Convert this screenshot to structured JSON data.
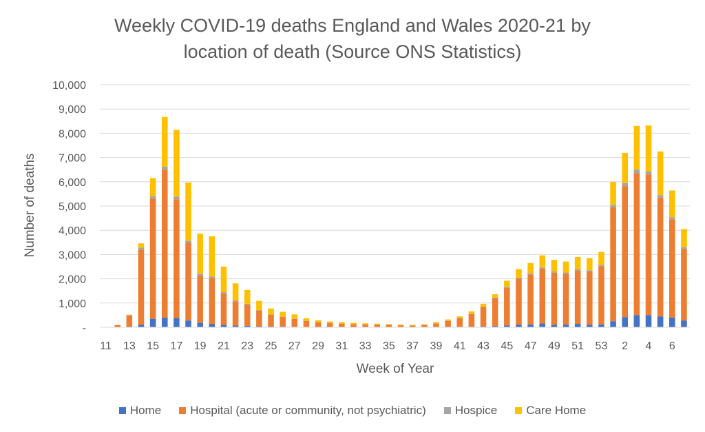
{
  "chart_data": {
    "type": "bar",
    "stacked": true,
    "title_line1": "Weekly COVID-19 deaths England and Wales 2020-21 by",
    "title_line2": "location of death (Source ONS Statistics)",
    "xlabel": "Week of Year",
    "ylabel": "Number of deaths",
    "ylim": [
      0,
      10000
    ],
    "yticks": [
      0,
      1000,
      2000,
      3000,
      4000,
      5000,
      6000,
      7000,
      8000,
      9000,
      10000
    ],
    "ytick_labels": [
      "-",
      "1,000",
      "2,000",
      "3,000",
      "4,000",
      "5,000",
      "6,000",
      "7,000",
      "8,000",
      "9,000",
      "10,000"
    ],
    "grid": true,
    "legend_position": "bottom",
    "categories": [
      "11",
      "12",
      "13",
      "14",
      "15",
      "16",
      "17",
      "18",
      "19",
      "20",
      "21",
      "22",
      "23",
      "24",
      "25",
      "26",
      "27",
      "28",
      "29",
      "30",
      "31",
      "32",
      "33",
      "34",
      "35",
      "36",
      "37",
      "38",
      "39",
      "40",
      "41",
      "42",
      "43",
      "44",
      "45",
      "46",
      "47",
      "48",
      "49",
      "50",
      "51",
      "52",
      "53",
      "1",
      "2",
      "3",
      "4",
      "5",
      "6",
      "7"
    ],
    "xtick_labels": [
      "11",
      "",
      "13",
      "",
      "15",
      "",
      "17",
      "",
      "19",
      "",
      "21",
      "",
      "23",
      "",
      "25",
      "",
      "27",
      "",
      "29",
      "",
      "31",
      "",
      "33",
      "",
      "35",
      "",
      "37",
      "",
      "39",
      "",
      "41",
      "",
      "43",
      "",
      "45",
      "",
      "47",
      "",
      "49",
      "",
      "51",
      "",
      "53",
      "",
      "2",
      "",
      "4",
      "",
      "6",
      ""
    ],
    "series": [
      {
        "name": "Home",
        "color": "#4472C4",
        "values": [
          0,
          10,
          30,
          100,
          350,
          400,
          380,
          280,
          190,
          140,
          100,
          70,
          60,
          40,
          30,
          25,
          20,
          15,
          12,
          10,
          8,
          7,
          6,
          5,
          5,
          5,
          5,
          8,
          10,
          15,
          20,
          25,
          35,
          50,
          80,
          100,
          120,
          160,
          100,
          110,
          140,
          100,
          120,
          250,
          420,
          500,
          500,
          450,
          400,
          280
        ]
      },
      {
        "name": "Hospital (acute or community, not psychiatric)",
        "color": "#ED7D31",
        "values": [
          5,
          80,
          450,
          3100,
          4950,
          6100,
          4900,
          3200,
          1950,
          1900,
          1300,
          1000,
          880,
          650,
          480,
          400,
          330,
          250,
          190,
          160,
          140,
          120,
          110,
          100,
          90,
          75,
          65,
          80,
          150,
          250,
          350,
          520,
          800,
          1150,
          1550,
          1900,
          2050,
          2250,
          2150,
          2100,
          2200,
          2200,
          2400,
          4700,
          5400,
          5850,
          5800,
          4900,
          4050,
          2950
        ]
      },
      {
        "name": "Hospice",
        "color": "#A5A5A5",
        "values": [
          0,
          5,
          20,
          80,
          100,
          120,
          110,
          90,
          70,
          60,
          50,
          40,
          30,
          20,
          15,
          12,
          10,
          8,
          6,
          5,
          5,
          5,
          4,
          4,
          4,
          4,
          4,
          5,
          6,
          8,
          10,
          12,
          20,
          30,
          40,
          45,
          50,
          55,
          50,
          50,
          50,
          50,
          55,
          100,
          120,
          150,
          120,
          100,
          90,
          70
        ]
      },
      {
        "name": "Care Home",
        "color": "#FFC000",
        "values": [
          0,
          5,
          20,
          180,
          750,
          2050,
          2750,
          2400,
          1650,
          1650,
          1050,
          700,
          570,
          380,
          250,
          200,
          170,
          100,
          80,
          65,
          60,
          50,
          45,
          40,
          35,
          30,
          30,
          35,
          45,
          50,
          70,
          100,
          115,
          130,
          250,
          350,
          430,
          500,
          480,
          450,
          510,
          500,
          530,
          950,
          1250,
          1800,
          1900,
          1800,
          1100,
          750
        ]
      }
    ]
  }
}
